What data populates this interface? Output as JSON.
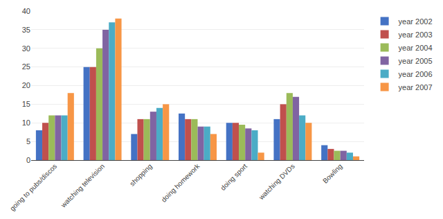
{
  "chart_data": {
    "type": "bar",
    "categories": [
      "going to pubs/discos",
      "watching television",
      "shopping",
      "doing homework",
      "doing sport",
      "watching DVDs",
      "Bowling"
    ],
    "series": [
      {
        "name": "year 2002",
        "color": "#4472c4",
        "values": [
          8,
          25,
          7,
          12.5,
          10,
          11,
          4
        ]
      },
      {
        "name": "year 2003",
        "color": "#c0504d",
        "values": [
          10,
          25,
          11,
          11,
          10,
          15,
          3
        ]
      },
      {
        "name": "year 2004",
        "color": "#9bbb59",
        "values": [
          12,
          30,
          11,
          11,
          9.5,
          18,
          2.5
        ]
      },
      {
        "name": "year 2005",
        "color": "#8064a2",
        "values": [
          12,
          35,
          13,
          9,
          8.5,
          17,
          2.5
        ]
      },
      {
        "name": "year 2006",
        "color": "#4bacc6",
        "values": [
          12,
          37,
          14,
          9,
          8,
          12,
          2
        ]
      },
      {
        "name": "year 2007",
        "color": "#f79646",
        "values": [
          18,
          38,
          15,
          7,
          2,
          10,
          1
        ]
      }
    ],
    "ylim": [
      0,
      40
    ],
    "yticks": [
      0,
      5,
      10,
      15,
      20,
      25,
      30,
      35,
      40
    ],
    "grid": true,
    "legend": "right"
  }
}
